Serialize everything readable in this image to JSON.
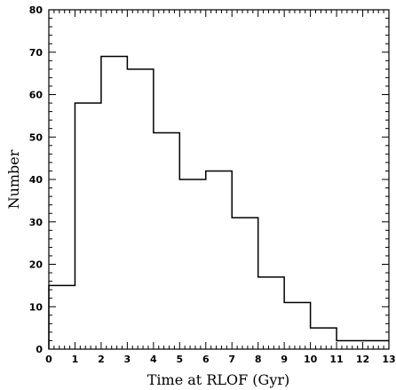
{
  "chart_data": {
    "type": "histogram",
    "title": "",
    "xlabel": "Time at RLOF (Gyr)",
    "ylabel": "Number",
    "xlim": [
      0,
      13
    ],
    "ylim": [
      0,
      80
    ],
    "xticks": [
      0,
      1,
      2,
      3,
      4,
      5,
      6,
      7,
      8,
      9,
      10,
      11,
      12,
      13
    ],
    "yticks": [
      0,
      10,
      20,
      30,
      40,
      50,
      60,
      70,
      80
    ],
    "bin_edges": [
      0,
      1,
      2,
      3,
      4,
      5,
      6,
      7,
      8,
      9,
      10,
      11,
      12,
      13
    ],
    "values": [
      15,
      58,
      69,
      66,
      51,
      40,
      42,
      31,
      17,
      11,
      5,
      2,
      2
    ],
    "grid": false,
    "legend": "none"
  }
}
